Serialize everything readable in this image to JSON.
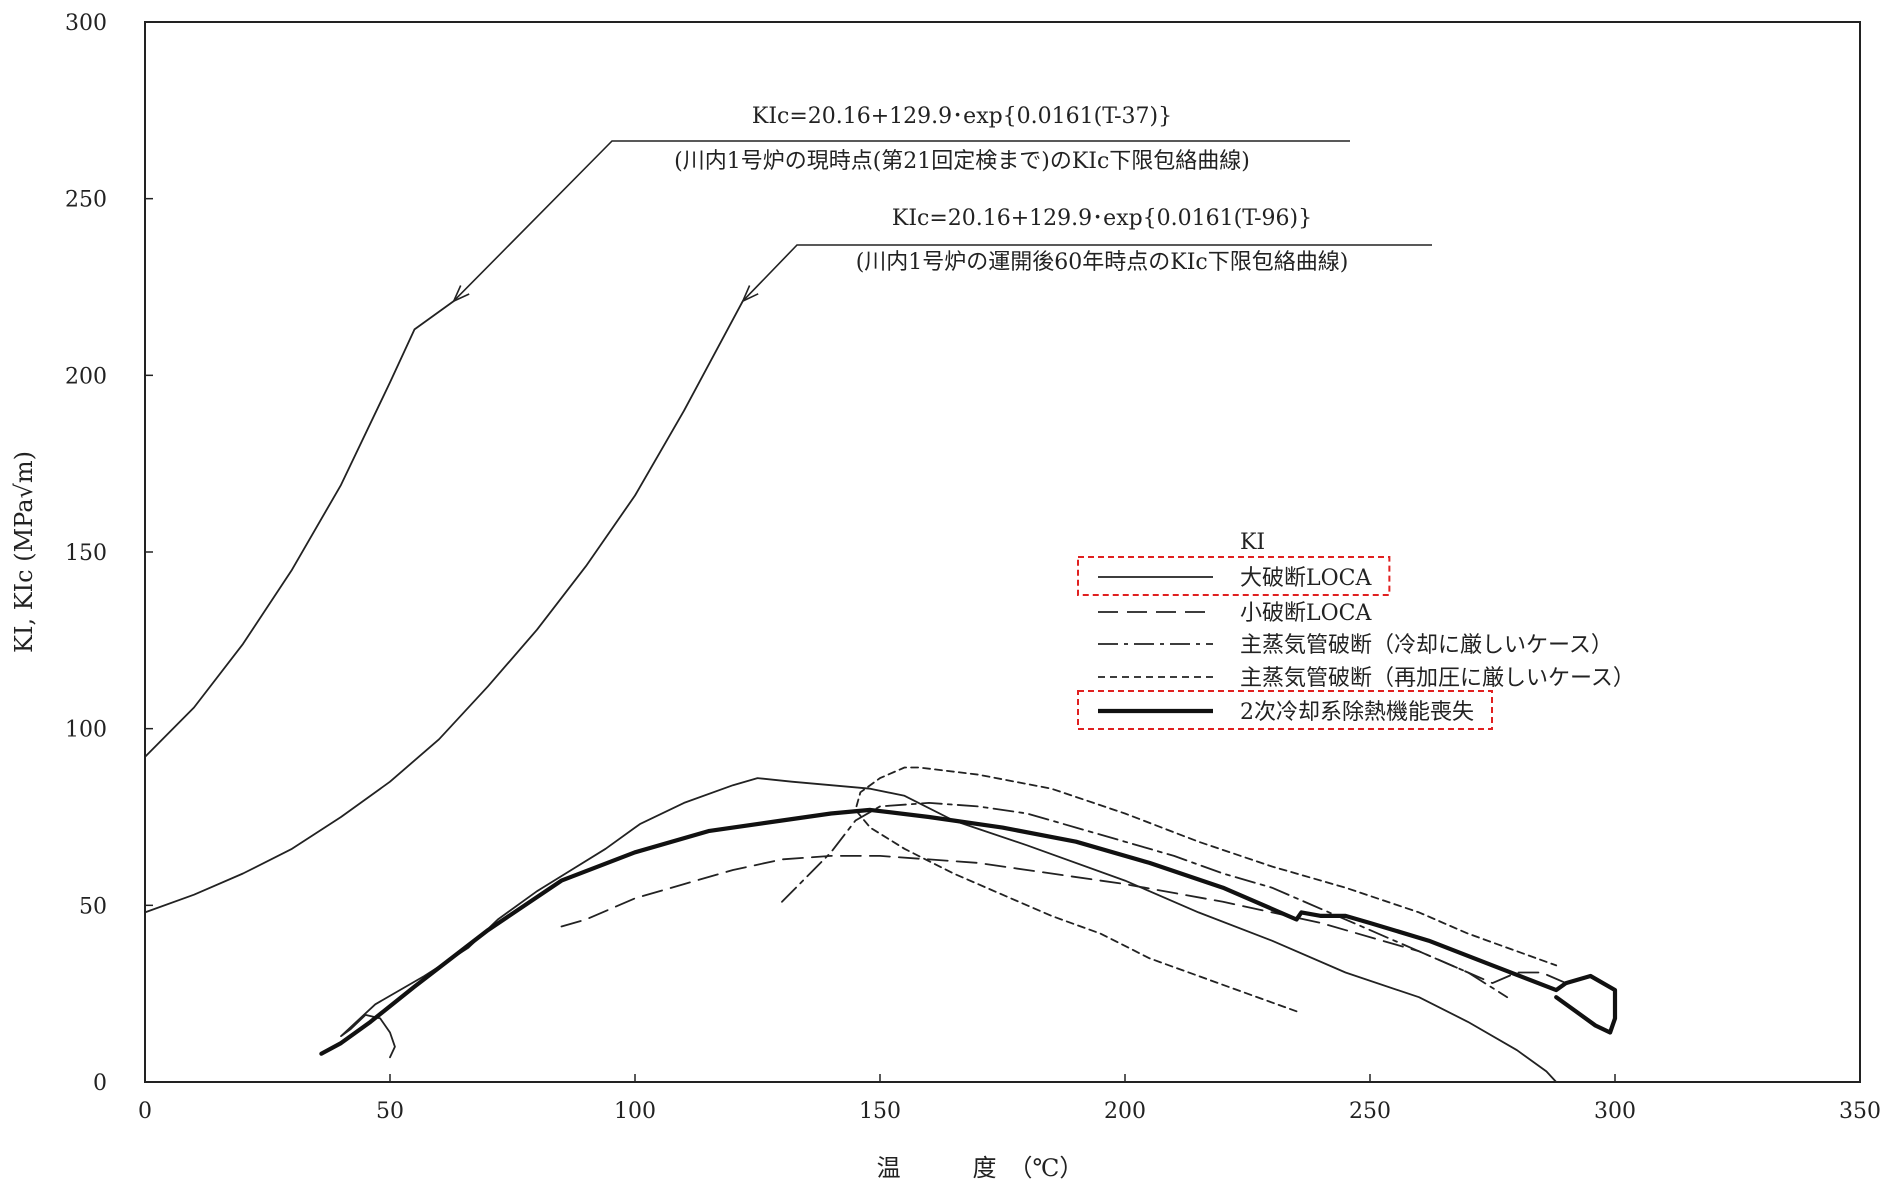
{
  "chart_data": {
    "type": "line",
    "xlabel": "温　　　度　（℃）",
    "ylabel": "KI, KIc (MPa√m)",
    "xlim": [
      0,
      350
    ],
    "ylim": [
      0,
      300
    ],
    "xticks": [
      0,
      50,
      100,
      150,
      200,
      250,
      300,
      350
    ],
    "yticks": [
      0,
      50,
      100,
      150,
      200,
      250,
      300
    ],
    "grid": false,
    "legend_position": "center-right",
    "legend_title": "KI",
    "annotations": [
      {
        "formula": "KIc=20.16+129.9･exp{0.0161(T-37)}",
        "note": "(川内1号炉の現時点(第21回定検まで)のKIc下限包絡曲線)",
        "target": [
          63,
          221
        ]
      },
      {
        "formula": "KIc=20.16+129.9･exp{0.0161(T-96)}",
        "note": "(川内1号炉の運開後60年時点のKIc下限包絡曲線)",
        "target": [
          122,
          221
        ]
      }
    ],
    "curves": [
      {
        "id": "kic-current",
        "style": "solid",
        "points": [
          [
            0,
            92
          ],
          [
            10,
            106
          ],
          [
            20,
            124
          ],
          [
            30,
            145
          ],
          [
            40,
            169
          ],
          [
            50,
            198
          ],
          [
            55,
            213
          ],
          [
            63,
            221
          ]
        ]
      },
      {
        "id": "kic-60years",
        "style": "solid",
        "points": [
          [
            0,
            48
          ],
          [
            10,
            53
          ],
          [
            20,
            59
          ],
          [
            30,
            66
          ],
          [
            40,
            75
          ],
          [
            50,
            85
          ],
          [
            60,
            97
          ],
          [
            70,
            112
          ],
          [
            80,
            128
          ],
          [
            90,
            146
          ],
          [
            100,
            166
          ],
          [
            110,
            190
          ],
          [
            122,
            221
          ]
        ]
      }
    ],
    "series": [
      {
        "name": "大破断LOCA",
        "style": "solid",
        "highlighted": true,
        "points": [
          [
            50,
            7
          ],
          [
            51,
            10
          ],
          [
            50,
            14
          ],
          [
            48,
            18
          ],
          [
            45,
            19
          ],
          [
            42,
            15
          ],
          [
            40,
            13
          ],
          [
            47,
            22
          ],
          [
            57,
            30
          ],
          [
            66,
            38
          ],
          [
            72,
            46
          ],
          [
            80,
            54
          ],
          [
            87,
            60
          ],
          [
            94,
            66
          ],
          [
            101,
            73
          ],
          [
            110,
            79
          ],
          [
            120,
            84
          ],
          [
            125,
            86
          ],
          [
            132,
            85
          ],
          [
            140,
            84
          ],
          [
            148,
            83
          ],
          [
            155,
            81
          ],
          [
            165,
            74
          ],
          [
            180,
            67
          ],
          [
            200,
            57
          ],
          [
            215,
            48
          ],
          [
            230,
            40
          ],
          [
            245,
            31
          ],
          [
            260,
            24
          ],
          [
            270,
            17
          ],
          [
            280,
            9
          ],
          [
            286,
            3
          ],
          [
            288,
            0
          ]
        ]
      },
      {
        "name": "小破断LOCA",
        "style": "dashed",
        "highlighted": false,
        "points": [
          [
            85,
            44
          ],
          [
            90,
            46
          ],
          [
            100,
            52
          ],
          [
            110,
            56
          ],
          [
            120,
            60
          ],
          [
            130,
            63
          ],
          [
            140,
            64
          ],
          [
            150,
            64
          ],
          [
            160,
            63
          ],
          [
            170,
            62
          ],
          [
            180,
            60
          ],
          [
            200,
            56
          ],
          [
            220,
            51
          ],
          [
            240,
            45
          ],
          [
            260,
            37
          ],
          [
            270,
            31
          ],
          [
            275,
            28
          ],
          [
            280,
            31
          ],
          [
            285,
            31
          ],
          [
            290,
            28
          ]
        ]
      },
      {
        "name": "主蒸気管破断（冷却に厳しいケース）",
        "style": "dashdot",
        "highlighted": false,
        "points": [
          [
            130,
            51
          ],
          [
            140,
            65
          ],
          [
            145,
            74
          ],
          [
            150,
            78
          ],
          [
            160,
            79
          ],
          [
            170,
            78
          ],
          [
            180,
            76
          ],
          [
            190,
            72
          ],
          [
            200,
            68
          ],
          [
            210,
            64
          ],
          [
            220,
            59
          ],
          [
            230,
            55
          ],
          [
            240,
            49
          ],
          [
            250,
            43
          ],
          [
            260,
            37
          ],
          [
            270,
            31
          ],
          [
            278,
            24
          ]
        ]
      },
      {
        "name": "主蒸気管破断（再加圧に厳しいケース）",
        "style": "dotted",
        "highlighted": false,
        "points": [
          [
            235,
            20
          ],
          [
            225,
            25
          ],
          [
            215,
            30
          ],
          [
            205,
            35
          ],
          [
            195,
            42
          ],
          [
            185,
            47
          ],
          [
            175,
            53
          ],
          [
            165,
            59
          ],
          [
            155,
            66
          ],
          [
            148,
            72
          ],
          [
            145,
            77
          ],
          [
            146,
            82
          ],
          [
            150,
            86
          ],
          [
            155,
            89
          ],
          [
            158,
            89
          ],
          [
            170,
            87
          ],
          [
            185,
            83
          ],
          [
            200,
            76
          ],
          [
            215,
            68
          ],
          [
            230,
            61
          ],
          [
            245,
            55
          ],
          [
            260,
            48
          ],
          [
            270,
            42
          ],
          [
            280,
            37
          ],
          [
            288,
            33
          ]
        ]
      },
      {
        "name": "2次冷却系除熱機能喪失",
        "style": "thick",
        "highlighted": true,
        "points": [
          [
            36,
            8
          ],
          [
            40,
            11
          ],
          [
            46,
            17
          ],
          [
            55,
            27
          ],
          [
            70,
            43
          ],
          [
            85,
            57
          ],
          [
            100,
            65
          ],
          [
            115,
            71
          ],
          [
            130,
            74
          ],
          [
            140,
            76
          ],
          [
            148,
            77
          ],
          [
            160,
            75
          ],
          [
            175,
            72
          ],
          [
            190,
            68
          ],
          [
            205,
            62
          ],
          [
            220,
            55
          ],
          [
            230,
            49
          ],
          [
            235,
            46
          ],
          [
            236,
            48
          ],
          [
            240,
            47
          ],
          [
            245,
            47
          ],
          [
            250,
            45
          ],
          [
            262,
            40
          ],
          [
            275,
            33
          ],
          [
            288,
            26
          ],
          [
            290,
            28
          ],
          [
            295,
            30
          ],
          [
            300,
            26
          ],
          [
            300,
            18
          ],
          [
            299,
            14
          ],
          [
            296,
            16
          ],
          [
            292,
            20
          ],
          [
            288,
            24
          ]
        ]
      }
    ]
  }
}
